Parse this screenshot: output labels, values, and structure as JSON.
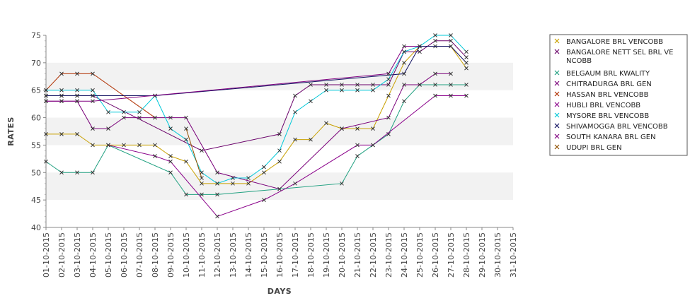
{
  "chart_data": {
    "type": "line",
    "title": "",
    "xlabel": "DAYS",
    "ylabel": "RATES",
    "ylim": [
      40,
      75
    ],
    "yticks": [
      40,
      45,
      50,
      55,
      60,
      65,
      70,
      75
    ],
    "grid": "alternating horizontal bands",
    "legend_position": "right",
    "categories": [
      "01-10-2015",
      "02-10-2015",
      "03-10-2015",
      "04-10-2015",
      "05-10-2015",
      "06-10-2015",
      "07-10-2015",
      "08-10-2015",
      "09-10-2015",
      "10-10-2015",
      "11-10-2015",
      "12-10-2015",
      "13-10-2015",
      "14-10-2015",
      "15-10-2015",
      "16-10-2015",
      "17-10-2015",
      "18-10-2015",
      "19-10-2015",
      "20-10-2015",
      "21-10-2015",
      "22-10-2015",
      "23-10-2015",
      "24-10-2015",
      "25-10-2015",
      "26-10-2015",
      "27-10-2015",
      "28-10-2015",
      "29-10-2015",
      "30-10-2015",
      "31-10-2015"
    ],
    "series": [
      {
        "name": "BANGALORE BRL VENCOBB",
        "color": "#c8a000",
        "values": [
          57,
          57,
          57,
          55,
          55,
          55,
          55,
          55,
          53,
          52,
          48,
          48,
          48,
          48,
          50,
          52,
          56,
          56,
          59,
          58,
          58,
          58,
          64,
          70,
          73,
          73,
          73,
          69,
          null,
          null,
          null
        ]
      },
      {
        "name": "BANGALORE NETT SEL BRL VENCOBB",
        "legend_lines": [
          "BANGALORE NETT SEL BRL VE",
          "NCOBB"
        ],
        "color": "#6a006a",
        "values": [
          64,
          64,
          64,
          64,
          null,
          null,
          null,
          null,
          null,
          null,
          54,
          null,
          null,
          null,
          null,
          57,
          64,
          66,
          66,
          66,
          66,
          66,
          66,
          72,
          72,
          74,
          74,
          71,
          null,
          null,
          null
        ]
      },
      {
        "name": "BELGAUM BRL KWALITY",
        "color": "#20a080",
        "values": [
          52,
          50,
          50,
          50,
          55,
          null,
          null,
          null,
          50,
          46,
          46,
          46,
          null,
          null,
          null,
          null,
          null,
          null,
          null,
          48,
          53,
          55,
          57,
          63,
          66,
          66,
          66,
          66,
          null,
          null,
          null
        ]
      },
      {
        "name": "CHITRADURGA BRL GEN",
        "color": "#7a007a",
        "values": [
          63,
          63,
          63,
          58,
          58,
          60,
          60,
          60,
          60,
          60,
          null,
          50,
          null,
          null,
          null,
          47,
          null,
          null,
          null,
          58,
          null,
          null,
          60,
          66,
          66,
          68,
          68,
          null,
          null,
          null,
          null
        ]
      },
      {
        "name": "HASSAN BRL VENCOBB",
        "color": "#b03000",
        "values": [
          65,
          68,
          68,
          68,
          null,
          null,
          null,
          60,
          null,
          null,
          null,
          null,
          null,
          null,
          null,
          null,
          null,
          null,
          null,
          null,
          null,
          null,
          null,
          null,
          null,
          null,
          null,
          null,
          null,
          null,
          null
        ]
      },
      {
        "name": "HUBLI BRL VENCOBB",
        "color": "#8a008a",
        "values": [
          null,
          null,
          null,
          null,
          55,
          null,
          null,
          53,
          52,
          null,
          null,
          42,
          null,
          null,
          45,
          null,
          48,
          null,
          null,
          null,
          55,
          55,
          null,
          null,
          null,
          64,
          64,
          64,
          null,
          null,
          null
        ]
      },
      {
        "name": "MYSORE BRL VENCOBB",
        "color": "#00c8d8",
        "values": [
          65,
          65,
          65,
          65,
          61,
          61,
          61,
          64,
          58,
          56,
          50,
          48,
          49,
          49,
          51,
          54,
          61,
          63,
          65,
          65,
          65,
          65,
          67,
          72,
          73,
          75,
          75,
          72,
          null,
          null,
          null
        ]
      },
      {
        "name": "SHIVAMOGGA BRL VENCOBB",
        "color": "#101060",
        "values": [
          64,
          64,
          64,
          64,
          null,
          null,
          null,
          64,
          null,
          null,
          null,
          null,
          null,
          null,
          null,
          null,
          null,
          null,
          null,
          null,
          null,
          null,
          null,
          68,
          73,
          null,
          73,
          70,
          null,
          null,
          null
        ]
      },
      {
        "name": "SOUTH KANARA BRL GEN",
        "color": "#800080",
        "values": [
          63,
          63,
          63,
          63,
          null,
          null,
          null,
          null,
          null,
          null,
          null,
          null,
          null,
          null,
          null,
          null,
          null,
          null,
          null,
          null,
          null,
          null,
          68,
          73,
          73,
          null,
          null,
          null,
          null,
          null,
          null
        ]
      },
      {
        "name": "UDUPI BRL GEN",
        "color": "#905000",
        "values": [
          null,
          null,
          null,
          null,
          null,
          null,
          null,
          null,
          null,
          58,
          49,
          null,
          null,
          null,
          null,
          null,
          null,
          null,
          null,
          null,
          null,
          null,
          null,
          null,
          null,
          null,
          null,
          null,
          null,
          null,
          null
        ]
      }
    ]
  }
}
